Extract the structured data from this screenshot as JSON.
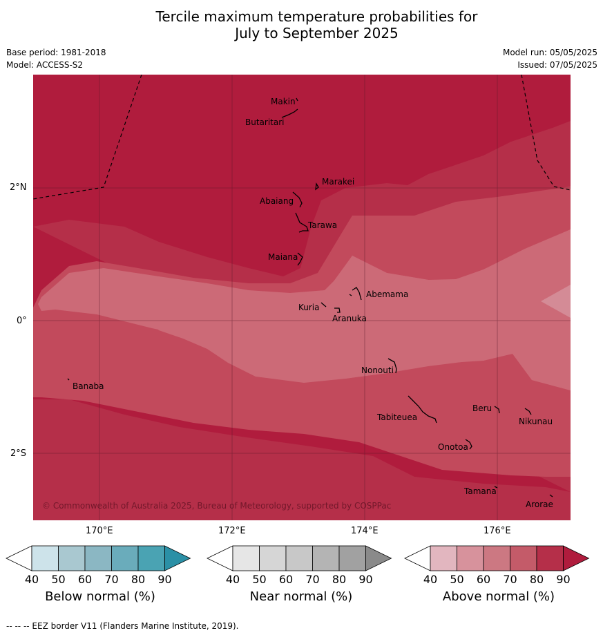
{
  "title_line1": "Tercile maximum temperature probabilities for",
  "title_line2": "July to September 2025",
  "base_period": "Base period: 1981-2018",
  "model": "Model: ACCESS-S2",
  "model_run": "Model run: 05/05/2025",
  "issued": "Issued: 07/05/2025",
  "copyright": "© Commonwealth of Australia 2025, Bureau of Meteorology, supported by COSPPac",
  "axis": {
    "lon_ticks": [
      "170°E",
      "172°E",
      "174°E",
      "176°E"
    ],
    "lat_ticks": [
      "2°N",
      "0°",
      "2°S"
    ]
  },
  "places": {
    "makin": "Makin",
    "butaritari": "Butaritari",
    "marakei": "Marakei",
    "abaiang": "Abaiang",
    "tarawa": "Tarawa",
    "maiana": "Maiana",
    "abemama": "Abemama",
    "kuria": "Kuria",
    "aranuka": "Aranuka",
    "nonouti": "Nonouti",
    "banaba": "Banaba",
    "beru": "Beru",
    "tabiteuea": "Tabiteuea",
    "nikunau": "Nikunau",
    "onotoa": "Onotoa",
    "tamana": "Tamana",
    "arorae": "Arorae"
  },
  "colorbars": {
    "below": {
      "label": "Below normal (%)",
      "ticks": [
        "40",
        "50",
        "60",
        "70",
        "80",
        "90"
      ],
      "colors": [
        "#cde3ea",
        "#a9c8d0",
        "#8bb7c3",
        "#6aacbb",
        "#4aa3b3",
        "#2b90a6"
      ]
    },
    "near": {
      "label": "Near normal (%)",
      "ticks": [
        "40",
        "50",
        "60",
        "70",
        "80",
        "90"
      ],
      "colors": [
        "#e6e6e6",
        "#d6d6d6",
        "#c8c8c8",
        "#b4b4b4",
        "#a1a1a1",
        "#8a8a8a"
      ]
    },
    "above": {
      "label": "Above normal (%)",
      "ticks": [
        "40",
        "50",
        "60",
        "70",
        "80",
        "90"
      ],
      "colors": [
        "#e2b6bf",
        "#d7929c",
        "#cc7882",
        "#c45b69",
        "#b52f49",
        "#b01c3d"
      ]
    }
  },
  "map_colors": {
    "p90": "#b01c3d",
    "p80": "#b52f49",
    "p70": "#c24a5c",
    "p60": "#cc6a77",
    "p50": "#d48b96"
  },
  "footer": "--  --  -- EEZ border V11 (Flanders Marine Institute, 2019)."
}
